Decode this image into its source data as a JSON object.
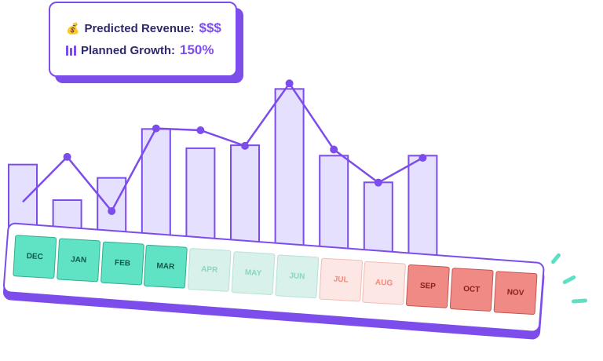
{
  "summary": {
    "revenue_label": "Predicted Revenue:",
    "revenue_value": "$$$",
    "growth_label": "Planned Growth:",
    "growth_value": "150%",
    "revenue_icon": "money-bag-icon",
    "growth_icon": "bar-chart-icon"
  },
  "chart_data": {
    "type": "bar",
    "categories": [
      "DEC",
      "JAN",
      "FEB",
      "MAR",
      "APR",
      "MAY",
      "JUN",
      "JUL",
      "AUG",
      "SEP",
      "OCT",
      "NOV"
    ],
    "values": [
      69,
      45,
      60,
      93,
      80,
      82,
      120,
      75,
      57,
      75,
      0,
      0
    ],
    "line_values": [
      28,
      77,
      18,
      108,
      106,
      89,
      157,
      85,
      49,
      76,
      null,
      null
    ],
    "y_scale_max": 180,
    "colors": {
      "bar_fill": "#e6e0ff",
      "bar_stroke": "#7c4dea",
      "line": "#7c4dea"
    }
  },
  "months": [
    {
      "label": "DEC",
      "status": "past"
    },
    {
      "label": "JAN",
      "status": "past"
    },
    {
      "label": "FEB",
      "status": "past"
    },
    {
      "label": "MAR",
      "status": "past"
    },
    {
      "label": "APR",
      "status": "planned"
    },
    {
      "label": "MAY",
      "status": "planned"
    },
    {
      "label": "JUN",
      "status": "planned"
    },
    {
      "label": "JUL",
      "status": "warning"
    },
    {
      "label": "AUG",
      "status": "warning"
    },
    {
      "label": "SEP",
      "status": "alert"
    },
    {
      "label": "OCT",
      "status": "alert"
    },
    {
      "label": "NOV",
      "status": "alert"
    }
  ],
  "status_colors": {
    "past": {
      "bg": "#5fe3c4",
      "border": "#2fae8f",
      "text": "#0f5a48"
    },
    "planned": {
      "bg": "#d8f1ea",
      "border": "#b6e2d6",
      "text": "#8ad6c0"
    },
    "warning": {
      "bg": "#fde7e4",
      "border": "#f4bcb5",
      "text": "#ee8b80"
    },
    "alert": {
      "bg": "#f08a85",
      "border": "#c7534d",
      "text": "#8a1f1b"
    }
  }
}
